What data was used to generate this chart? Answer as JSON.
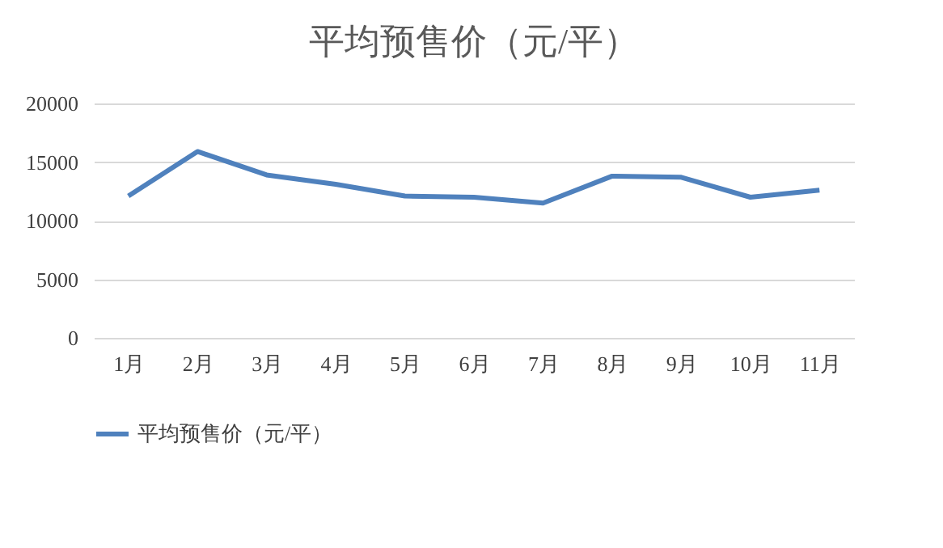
{
  "chart_data": {
    "type": "line",
    "title": "平均预售价（元/平）",
    "categories": [
      "1月",
      "2月",
      "3月",
      "4月",
      "5月",
      "6月",
      "7月",
      "8月",
      "9月",
      "10月",
      "11月"
    ],
    "series": [
      {
        "name": "平均预售价（元/平）",
        "color": "#4f81bd",
        "values": [
          12100,
          15900,
          13900,
          13100,
          12100,
          12000,
          11500,
          13800,
          13700,
          12000,
          12600
        ]
      }
    ],
    "ylim": [
      0,
      20000
    ],
    "yticks": [
      0,
      5000,
      10000,
      15000,
      20000
    ],
    "grid": "y",
    "legend": "bottom",
    "marker": "none",
    "line_style": "solid"
  }
}
